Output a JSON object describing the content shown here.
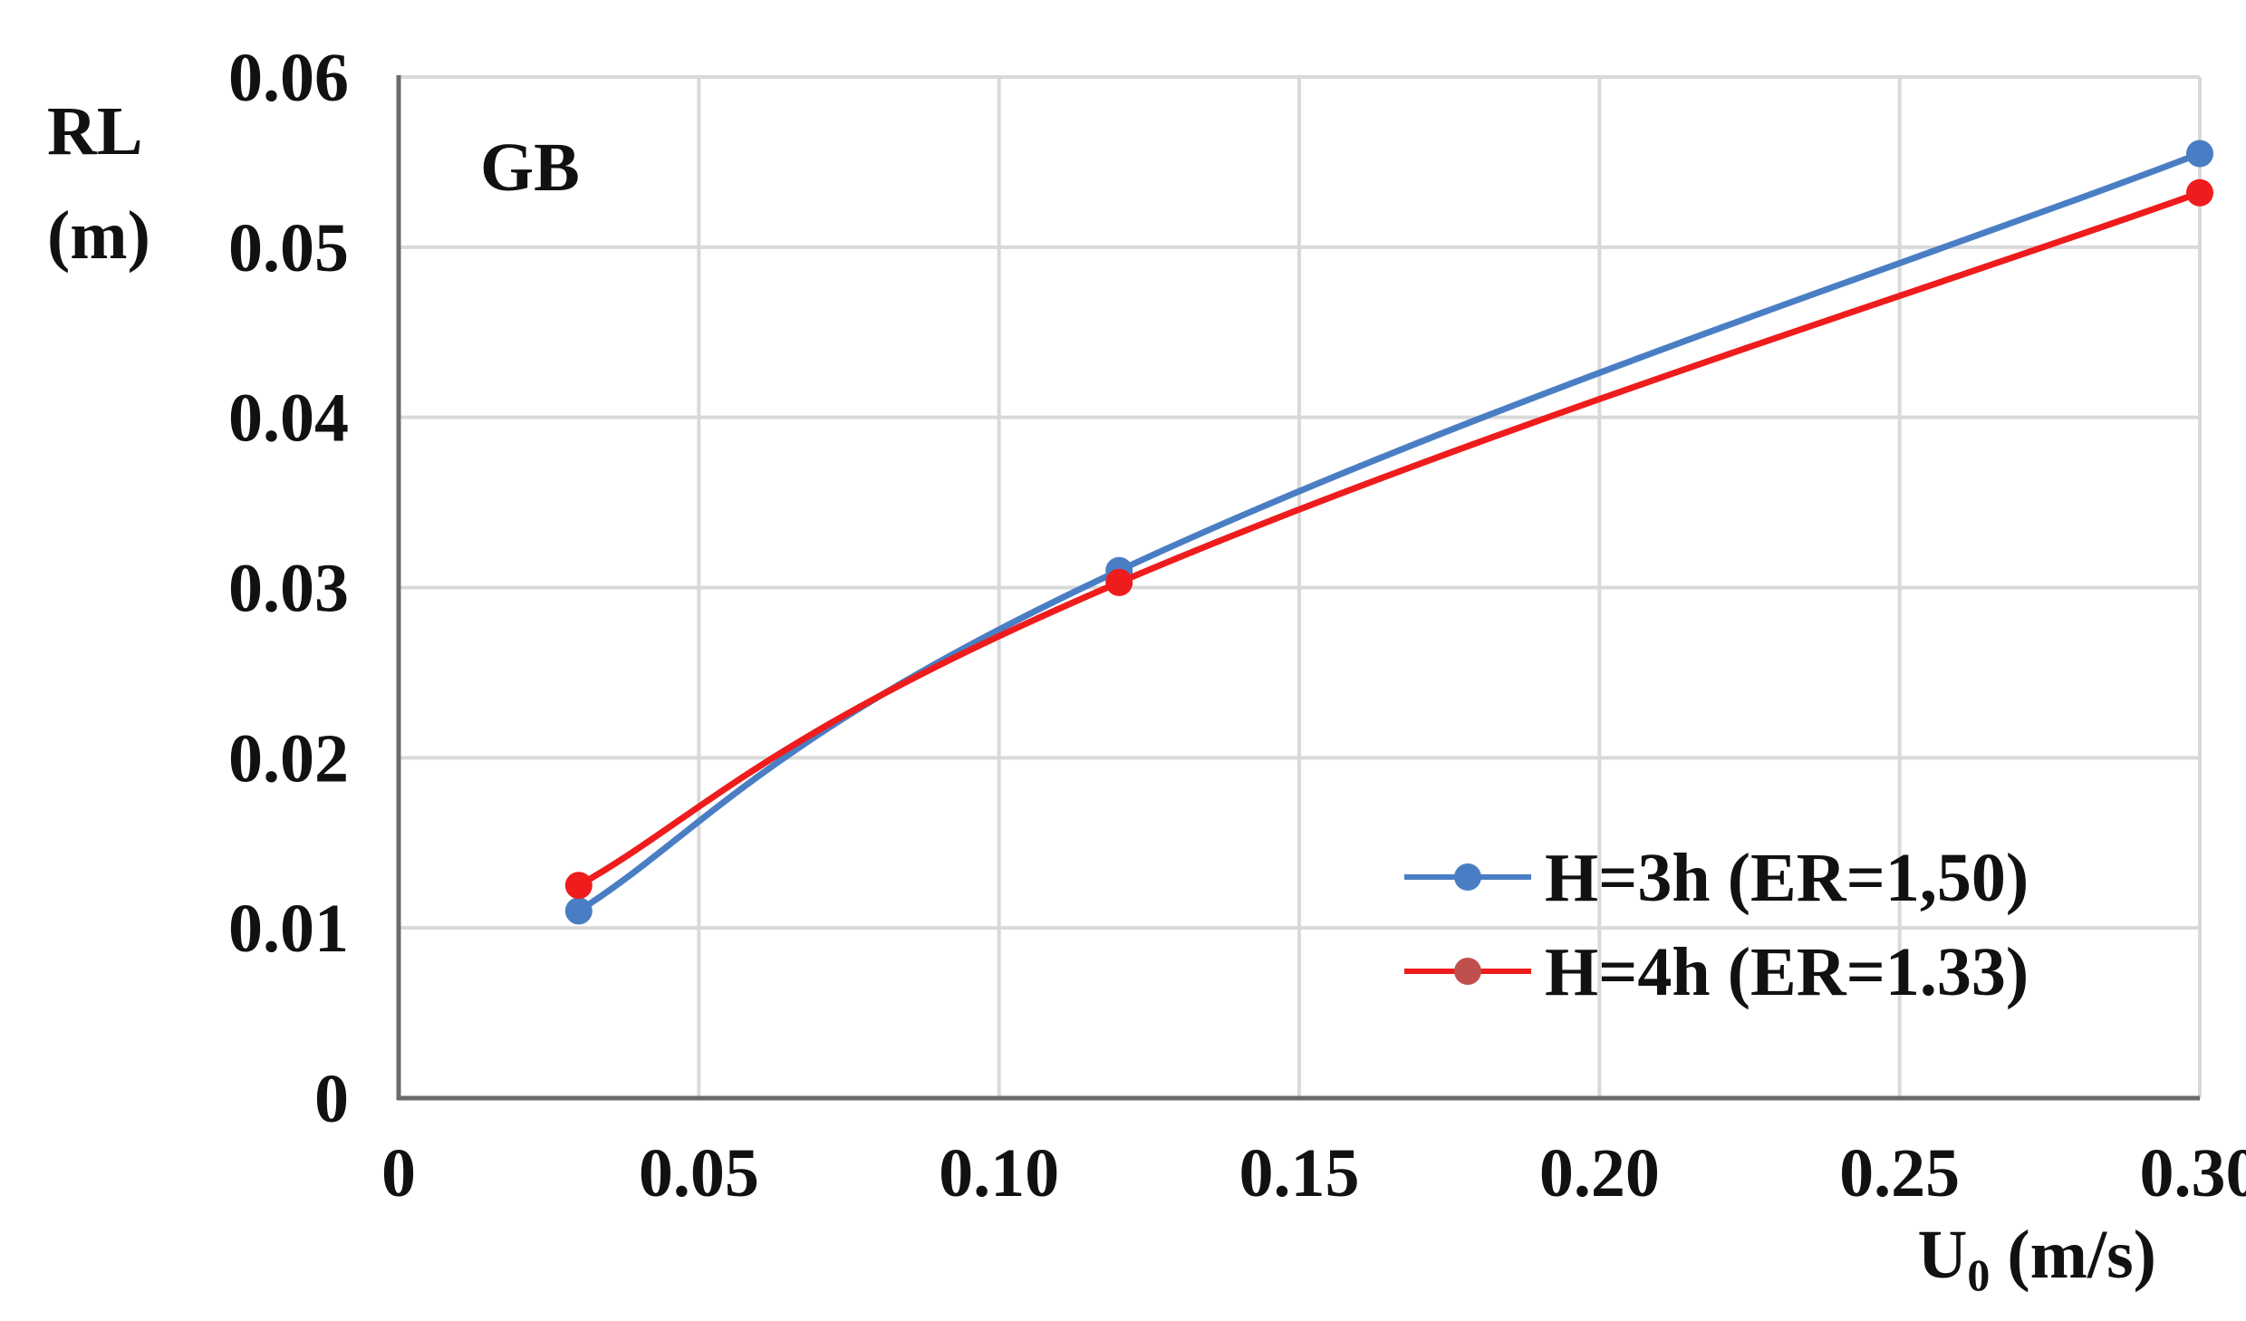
{
  "chart_data": {
    "type": "line",
    "title": "",
    "panel_label": "GB",
    "xlabel": "U",
    "xlabel_subscript": "0",
    "xlabel_unit": " (m/s)",
    "ylabel_line1": "RL",
    "ylabel_line2": "(m)",
    "xlim": [
      0,
      0.3
    ],
    "ylim": [
      0,
      0.06
    ],
    "x_ticks": [
      0,
      0.05,
      0.1,
      0.15,
      0.2,
      0.25,
      0.3
    ],
    "x_tick_labels": [
      "0",
      "0.05",
      "0.10",
      "0.15",
      "0.20",
      "0.25",
      "0.30"
    ],
    "y_ticks": [
      0,
      0.01,
      0.02,
      0.03,
      0.04,
      0.05,
      0.06
    ],
    "y_tick_labels": [
      "0",
      "0.01",
      "0.02",
      "0.03",
      "0.04",
      "0.05",
      "0.06"
    ],
    "grid": true,
    "legend_position": "bottom-right",
    "series": [
      {
        "name": "H=3h (ER=1,50)",
        "color": "#4a7ec4",
        "x": [
          0.03,
          0.12,
          0.3
        ],
        "y": [
          0.011,
          0.031,
          0.0555
        ]
      },
      {
        "name": "H=4h (ER=1.33)",
        "color": "#ee1c1c",
        "legend_marker_color": "#c0504d",
        "x": [
          0.03,
          0.12,
          0.3
        ],
        "y": [
          0.0125,
          0.0303,
          0.0532
        ]
      }
    ]
  }
}
